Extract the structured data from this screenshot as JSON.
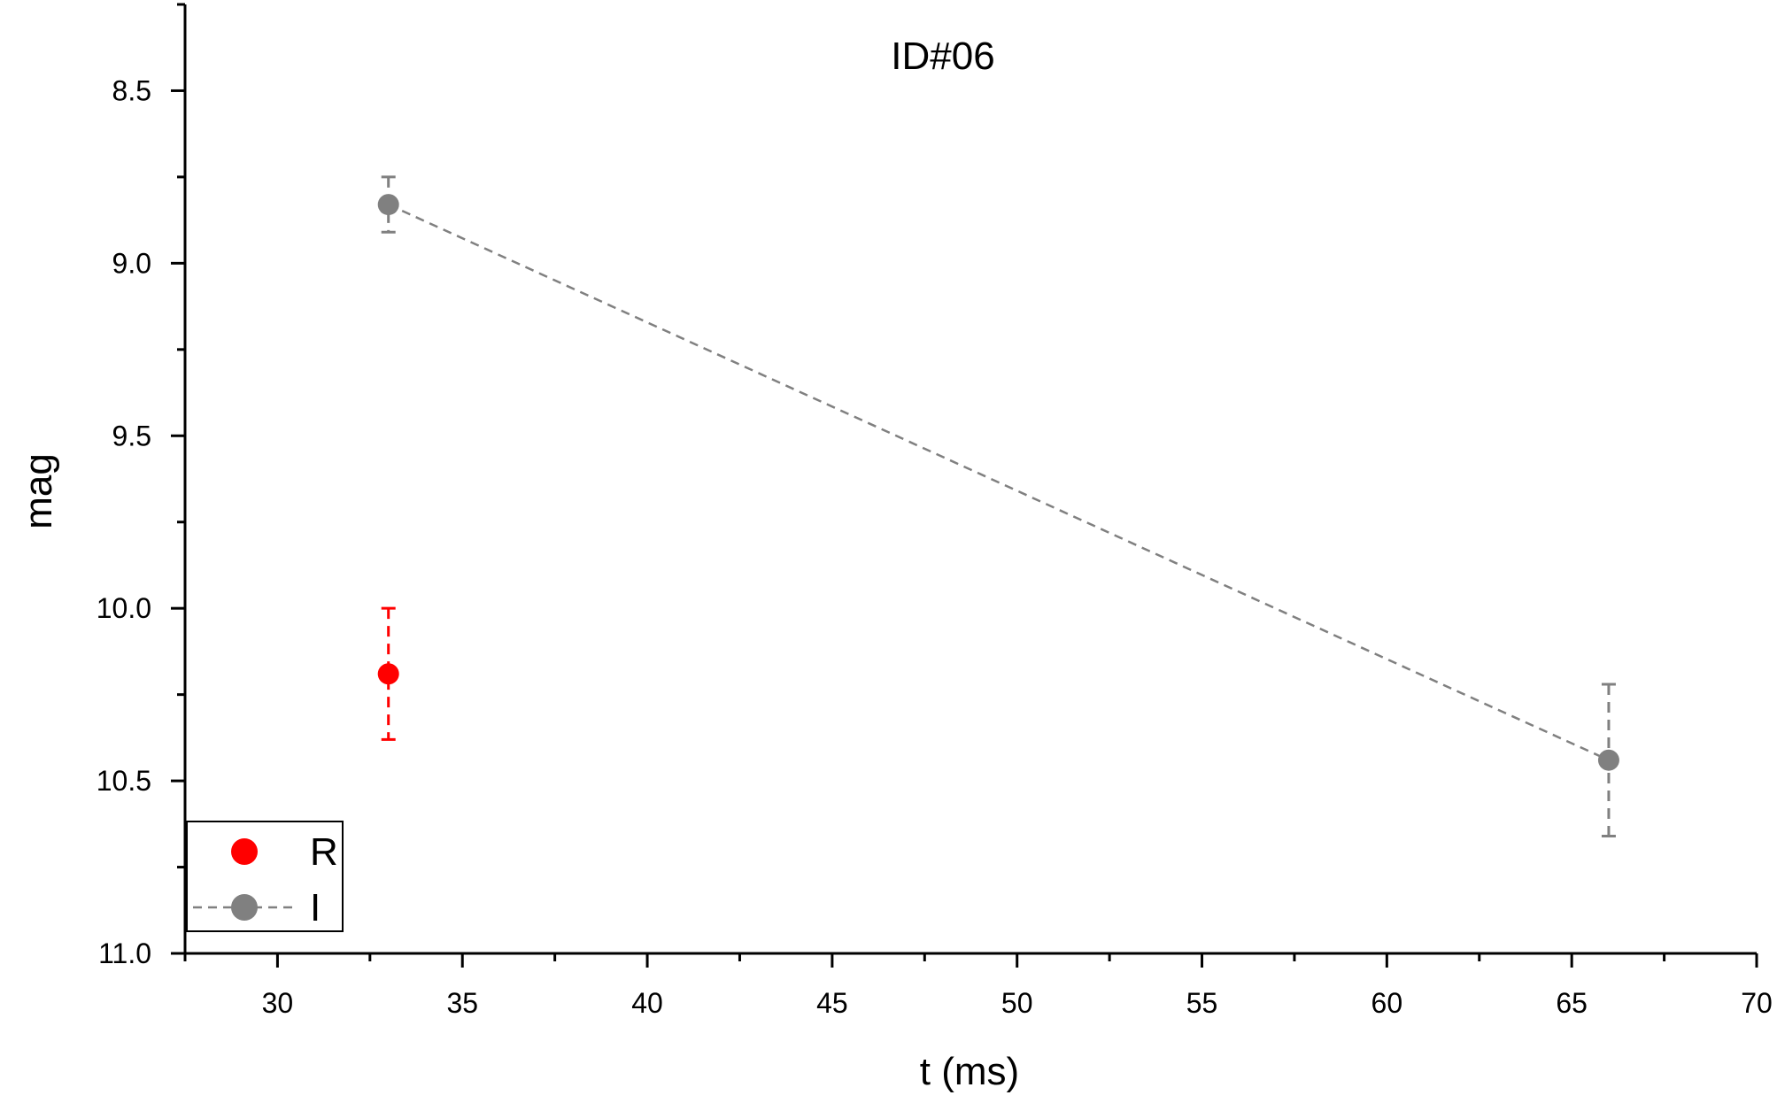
{
  "chart_data": {
    "type": "scatter",
    "title": "ID#06",
    "xlabel": "t (ms)",
    "ylabel": "mag",
    "xlim": [
      27.5,
      70
    ],
    "ylim": [
      8.25,
      11.0
    ],
    "y_inverted": true,
    "x_ticks": [
      30,
      35,
      40,
      45,
      50,
      55,
      60,
      65,
      70
    ],
    "y_ticks": [
      8.5,
      9.0,
      9.5,
      10.0,
      10.5,
      11.0
    ],
    "x_tick_labels": [
      "30",
      "35",
      "40",
      "45",
      "50",
      "55",
      "60",
      "65",
      "70"
    ],
    "y_tick_labels": [
      "8.5",
      "9.0",
      "9.5",
      "10.0",
      "10.5",
      "11.0"
    ],
    "grid": false,
    "legend_position": "bottom-left",
    "series": [
      {
        "name": "R",
        "color": "#ff0000",
        "connect": false,
        "points": [
          {
            "x": 33,
            "y": 10.19,
            "err_low": 10.0,
            "err_high": 10.38
          }
        ]
      },
      {
        "name": "I",
        "color": "#808080",
        "connect": true,
        "line_style": "dashed",
        "points": [
          {
            "x": 33,
            "y": 8.83,
            "err_low": 8.75,
            "err_high": 8.91
          },
          {
            "x": 66,
            "y": 10.44,
            "err_low": 10.22,
            "err_high": 10.66
          }
        ]
      }
    ]
  }
}
